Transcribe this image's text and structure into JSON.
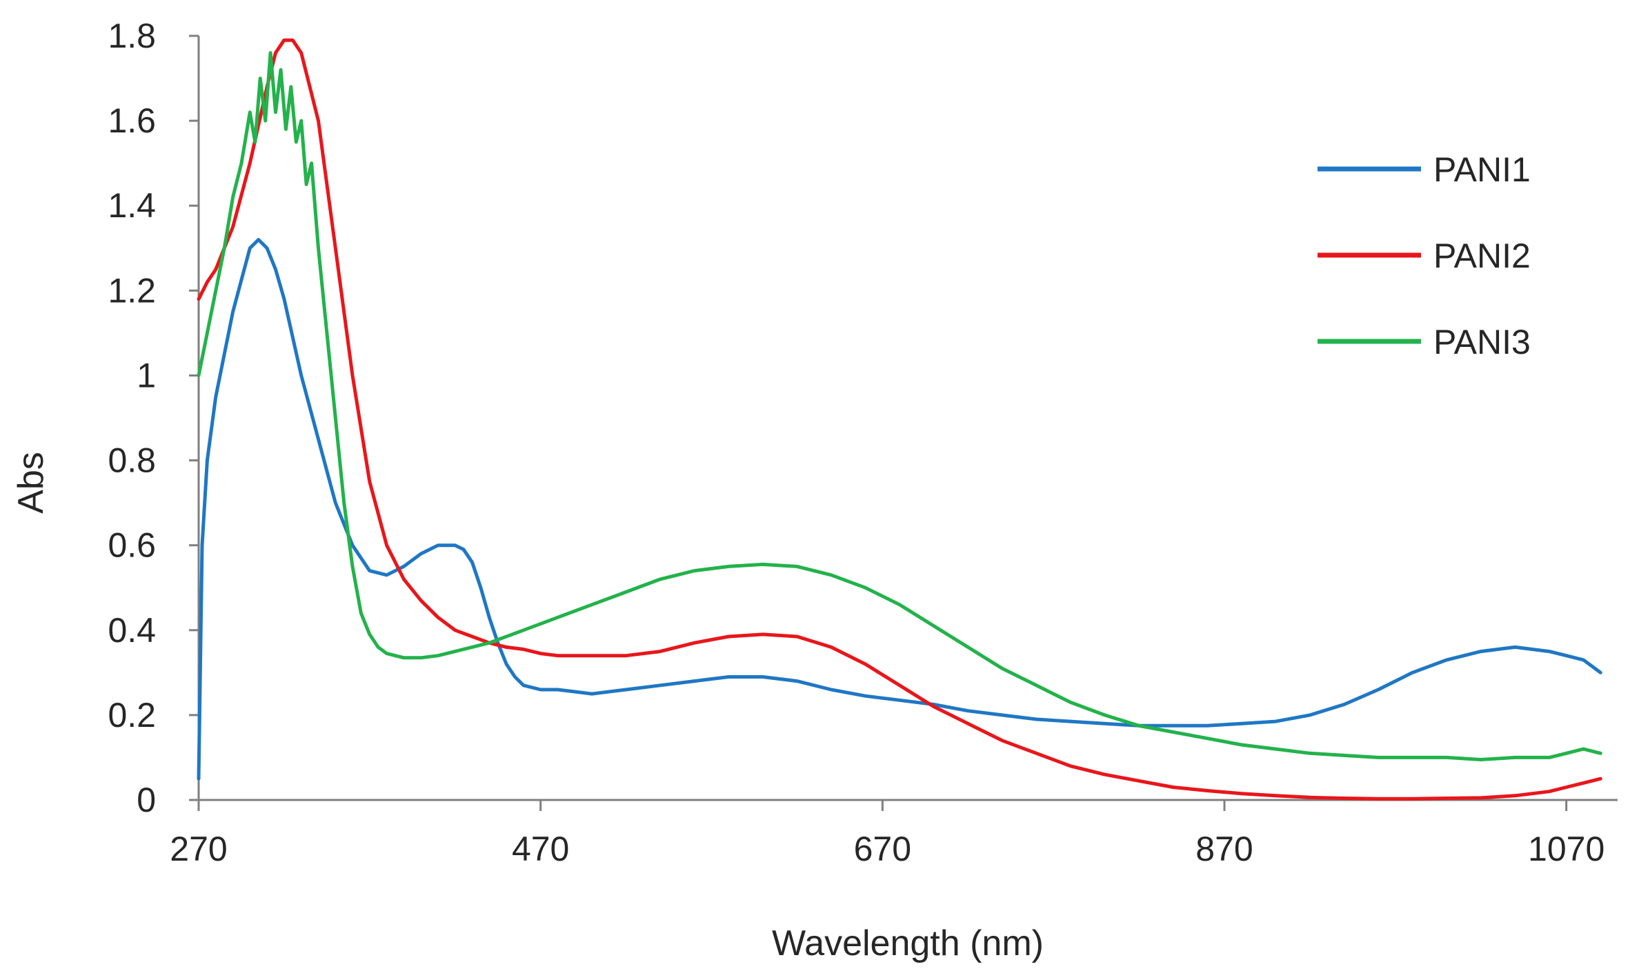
{
  "chart_data": {
    "type": "line",
    "title": "",
    "xlabel": "Wavelength (nm)",
    "ylabel": "Abs",
    "xlim": [
      270,
      1100
    ],
    "ylim": [
      0,
      1.8
    ],
    "xticks": [
      270,
      470,
      670,
      870,
      1070
    ],
    "xtick_labels": [
      "270",
      "470",
      "670",
      "870",
      "1070"
    ],
    "yticks": [
      0,
      0.2,
      0.4,
      0.6,
      0.8,
      1,
      1.2,
      1.4,
      1.6,
      1.8
    ],
    "ytick_labels": [
      "0",
      "0.2",
      "0.4",
      "0.6",
      "0.8",
      "1",
      "1.2",
      "1.4",
      "1.6",
      "1.8"
    ],
    "grid": false,
    "legend_position": "top-right",
    "series": [
      {
        "name": "PANI1",
        "color": "#1f77c4",
        "x": [
          270,
          272,
          275,
          280,
          290,
          300,
          305,
          310,
          315,
          320,
          330,
          340,
          350,
          360,
          370,
          380,
          390,
          400,
          410,
          420,
          425,
          430,
          435,
          440,
          445,
          450,
          455,
          460,
          470,
          480,
          490,
          500,
          520,
          540,
          560,
          580,
          600,
          620,
          640,
          660,
          680,
          700,
          720,
          740,
          760,
          780,
          800,
          820,
          840,
          860,
          880,
          900,
          920,
          940,
          960,
          980,
          1000,
          1020,
          1040,
          1060,
          1070,
          1080,
          1090
        ],
        "y": [
          0.05,
          0.6,
          0.8,
          0.95,
          1.15,
          1.3,
          1.32,
          1.3,
          1.25,
          1.18,
          1.0,
          0.85,
          0.7,
          0.6,
          0.54,
          0.53,
          0.55,
          0.58,
          0.6,
          0.6,
          0.59,
          0.56,
          0.5,
          0.43,
          0.37,
          0.32,
          0.29,
          0.27,
          0.26,
          0.26,
          0.255,
          0.25,
          0.26,
          0.27,
          0.28,
          0.29,
          0.29,
          0.28,
          0.26,
          0.245,
          0.235,
          0.225,
          0.21,
          0.2,
          0.19,
          0.185,
          0.18,
          0.175,
          0.175,
          0.175,
          0.18,
          0.185,
          0.2,
          0.225,
          0.26,
          0.3,
          0.33,
          0.35,
          0.36,
          0.35,
          0.34,
          0.33,
          0.3
        ]
      },
      {
        "name": "PANI2",
        "color": "#e8161b",
        "x": [
          270,
          275,
          280,
          290,
          300,
          310,
          315,
          320,
          325,
          330,
          340,
          350,
          360,
          370,
          380,
          390,
          400,
          410,
          420,
          430,
          440,
          450,
          460,
          470,
          480,
          500,
          520,
          540,
          560,
          580,
          600,
          620,
          640,
          660,
          680,
          700,
          720,
          740,
          760,
          780,
          800,
          820,
          840,
          860,
          880,
          900,
          920,
          940,
          960,
          980,
          1000,
          1020,
          1040,
          1060,
          1070,
          1080,
          1090
        ],
        "y": [
          1.18,
          1.22,
          1.25,
          1.35,
          1.5,
          1.68,
          1.76,
          1.79,
          1.79,
          1.76,
          1.6,
          1.3,
          1.0,
          0.75,
          0.6,
          0.52,
          0.47,
          0.43,
          0.4,
          0.385,
          0.37,
          0.36,
          0.355,
          0.345,
          0.34,
          0.34,
          0.34,
          0.35,
          0.37,
          0.385,
          0.39,
          0.385,
          0.36,
          0.32,
          0.27,
          0.22,
          0.18,
          0.14,
          0.11,
          0.08,
          0.06,
          0.045,
          0.03,
          0.022,
          0.015,
          0.01,
          0.006,
          0.004,
          0.003,
          0.003,
          0.004,
          0.005,
          0.01,
          0.02,
          0.03,
          0.04,
          0.05
        ]
      },
      {
        "name": "PANI3",
        "color": "#23b24b",
        "x": [
          270,
          275,
          280,
          285,
          290,
          295,
          300,
          303,
          306,
          309,
          312,
          315,
          318,
          321,
          324,
          327,
          330,
          333,
          336,
          340,
          345,
          350,
          355,
          360,
          365,
          370,
          375,
          380,
          390,
          400,
          410,
          420,
          440,
          460,
          480,
          500,
          520,
          540,
          560,
          580,
          600,
          620,
          640,
          660,
          680,
          700,
          720,
          740,
          760,
          780,
          800,
          820,
          840,
          860,
          880,
          900,
          920,
          940,
          960,
          980,
          1000,
          1020,
          1040,
          1060,
          1070,
          1080,
          1090
        ],
        "y": [
          1.0,
          1.1,
          1.2,
          1.3,
          1.42,
          1.5,
          1.62,
          1.55,
          1.7,
          1.6,
          1.76,
          1.62,
          1.72,
          1.58,
          1.68,
          1.55,
          1.6,
          1.45,
          1.5,
          1.3,
          1.1,
          0.9,
          0.7,
          0.55,
          0.44,
          0.39,
          0.36,
          0.345,
          0.335,
          0.335,
          0.34,
          0.35,
          0.37,
          0.4,
          0.43,
          0.46,
          0.49,
          0.52,
          0.54,
          0.55,
          0.555,
          0.55,
          0.53,
          0.5,
          0.46,
          0.41,
          0.36,
          0.31,
          0.27,
          0.23,
          0.2,
          0.175,
          0.16,
          0.145,
          0.13,
          0.12,
          0.11,
          0.105,
          0.1,
          0.1,
          0.1,
          0.095,
          0.1,
          0.1,
          0.11,
          0.12,
          0.11
        ]
      }
    ]
  }
}
